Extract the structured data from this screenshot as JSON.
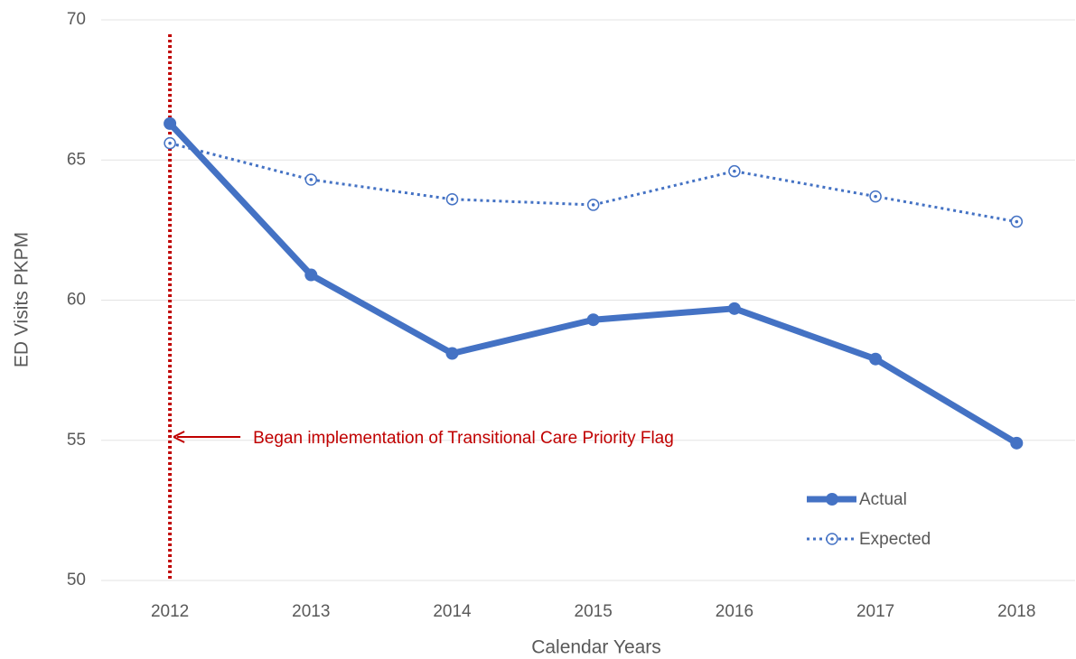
{
  "chart_data": {
    "type": "line",
    "categories": [
      "2012",
      "2013",
      "2014",
      "2015",
      "2016",
      "2017",
      "2018"
    ],
    "series": [
      {
        "name": "Actual",
        "color": "#4472c4",
        "values": [
          66.3,
          60.9,
          58.1,
          59.3,
          59.7,
          57.9,
          54.9
        ]
      },
      {
        "name": "Expected",
        "color": "#4472c4",
        "values": [
          65.6,
          64.3,
          63.6,
          63.4,
          64.6,
          63.7,
          62.8
        ]
      }
    ],
    "ylim": [
      50,
      70
    ],
    "yticks": [
      50,
      55,
      60,
      65,
      70
    ],
    "grid": true,
    "ylabel": "ED Visits PKPM",
    "xlabel": "Calendar Years",
    "annotation": "Began implementation of Transitional Care Priority Flag",
    "marker_category": "2012",
    "marker_color": "#c00000",
    "legend": "lower-right"
  }
}
